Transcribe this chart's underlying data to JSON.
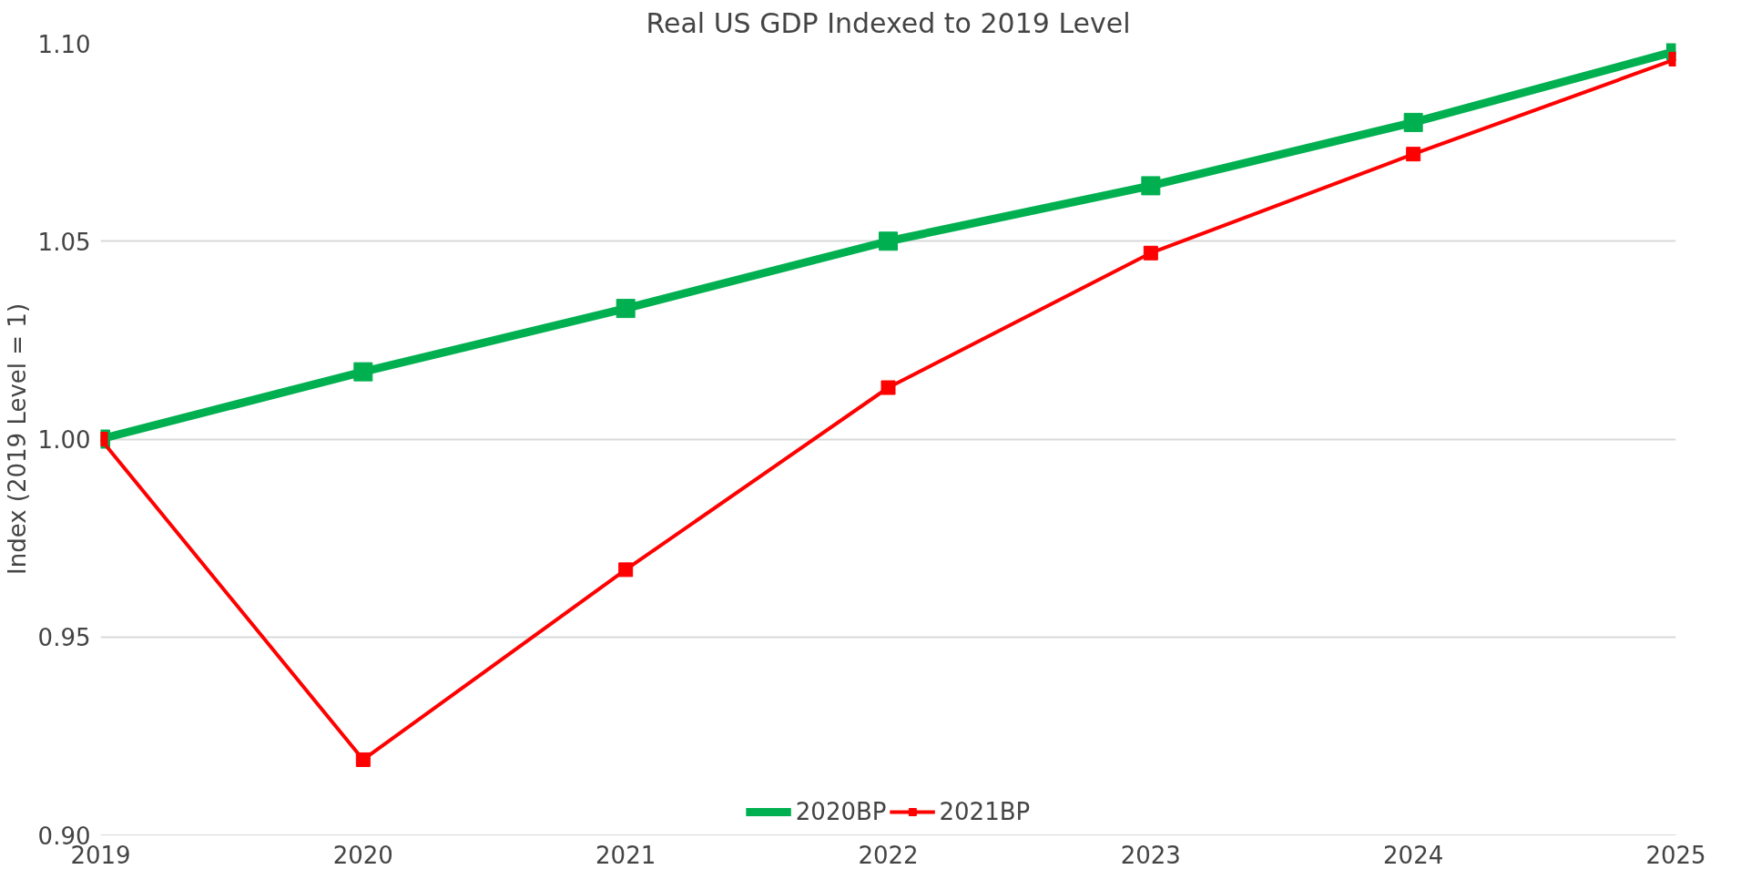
{
  "chart_data": {
    "type": "line",
    "title": "Real US GDP Indexed to 2019 Level",
    "ylabel": "Index (2019 Level = 1)",
    "x": [
      2019,
      2020,
      2021,
      2022,
      2023,
      2024,
      2025
    ],
    "series": [
      {
        "name": "2020BP",
        "color": "#00b050",
        "values": [
          1.0,
          1.017,
          1.033,
          1.05,
          1.064,
          1.08,
          1.098
        ]
      },
      {
        "name": "2021BP",
        "color": "#ff0000",
        "values": [
          1.0,
          0.919,
          0.967,
          1.013,
          1.047,
          1.072,
          1.096
        ]
      }
    ],
    "xlim": [
      2019,
      2025
    ],
    "xticks": [
      2019,
      2020,
      2021,
      2022,
      2023,
      2024,
      2025
    ],
    "ylim": [
      0.9,
      1.1
    ],
    "yticks": [
      {
        "value": 0.9,
        "label": "0.90"
      },
      {
        "value": 0.95,
        "label": "0.95"
      },
      {
        "value": 1.0,
        "label": "1.00"
      },
      {
        "value": 1.05,
        "label": "1.05"
      },
      {
        "value": 1.1,
        "label": "1.10"
      }
    ],
    "grid": "y",
    "legend": "bottom",
    "marker": "square",
    "line_style": "solid"
  }
}
